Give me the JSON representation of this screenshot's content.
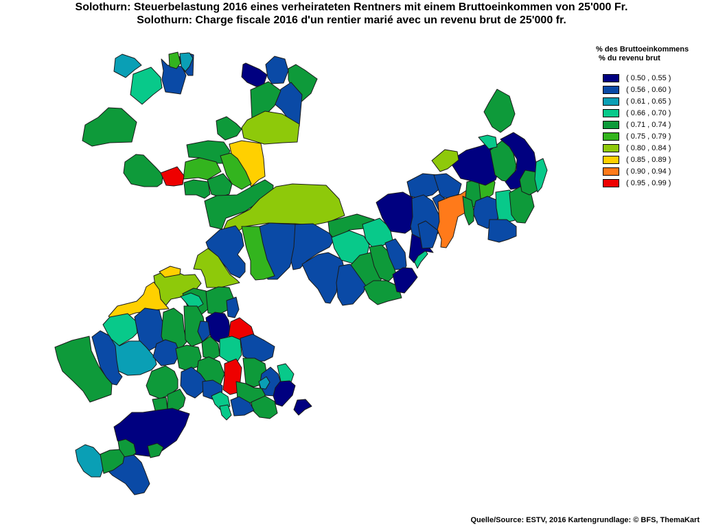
{
  "title_de": "Solothurn: Steuerbelastung 2016 eines verheirateten Rentners mit einem Bruttoeinkommen von 25'000 Fr.",
  "title_fr": "Solothurn: Charge fiscale 2016 d'un rentier marié avec un revenu brut de 25'000 fr.",
  "legend": {
    "heading_de": "% des Bruttoeinkommens",
    "heading_fr": "% du revenu brut",
    "classes": [
      {
        "label": "( 0.50 , 0.55 )",
        "color": "#000080"
      },
      {
        "label": "( 0.56 , 0.60 )",
        "color": "#0a4aa6"
      },
      {
        "label": "( 0.61 , 0.65 )",
        "color": "#0a9fb5"
      },
      {
        "label": "( 0.66 , 0.70 )",
        "color": "#08c98a"
      },
      {
        "label": "( 0.71 , 0.74 )",
        "color": "#0e9a3a"
      },
      {
        "label": "( 0.75 , 0.79 )",
        "color": "#33b41e"
      },
      {
        "label": "( 0.80 , 0.84 )",
        "color": "#8ec90a"
      },
      {
        "label": "( 0.85 , 0.89 )",
        "color": "#ffd000"
      },
      {
        "label": "( 0.90 , 0.94 )",
        "color": "#ff7a1a"
      },
      {
        "label": "( 0.95 , 0.99 )",
        "color": "#ee0000"
      }
    ]
  },
  "source": "Quelle/Source: ESTV, 2016 Kartengrundlage: © BFS, ThemaKart"
}
